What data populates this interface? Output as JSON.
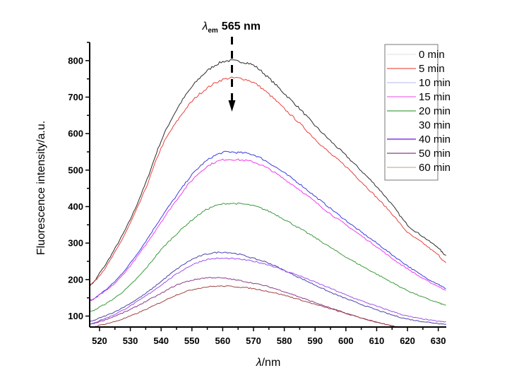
{
  "chart_data": {
    "type": "line",
    "title": "",
    "xlabel_symbol": "λ",
    "xlabel_unit": "/nm",
    "ylabel": "Fluorescence intensity/a.u.",
    "xlim": [
      516.8,
      632.6
    ],
    "ylim": [
      70,
      850
    ],
    "xticks": [
      520,
      530,
      540,
      550,
      560,
      570,
      580,
      590,
      600,
      610,
      620,
      630
    ],
    "yticks": [
      100,
      200,
      300,
      400,
      500,
      600,
      700,
      800
    ],
    "grid": false,
    "legend_position": "top-right",
    "annotation": {
      "symbol": "λ",
      "subscript": "em",
      "text": "565 nm",
      "arrow_x": 563,
      "arrow_direction": "down"
    },
    "x": [
      517,
      520,
      525,
      530,
      535,
      540,
      545,
      550,
      555,
      560,
      565,
      570,
      575,
      580,
      585,
      590,
      595,
      600,
      605,
      610,
      615,
      620,
      625,
      630,
      632.5
    ],
    "series": [
      {
        "name": "0 min",
        "color": "#2b2b2b",
        "legend_color": "#e6e6e6",
        "values": [
          185,
          218,
          285,
          365,
          465,
          580,
          665,
          728,
          772,
          797,
          798,
          787,
          752,
          710,
          668,
          622,
          580,
          540,
          498,
          455,
          405,
          350,
          318,
          288,
          266
        ]
      },
      {
        "name": "5 min",
        "color": "#e8413c",
        "legend_color": "#ee5a55",
        "values": [
          188,
          212,
          275,
          355,
          450,
          560,
          632,
          688,
          725,
          748,
          752,
          740,
          708,
          668,
          628,
          585,
          545,
          510,
          468,
          425,
          380,
          330,
          300,
          268,
          246
        ]
      },
      {
        "name": "10 min",
        "color": "#3b3be0",
        "legend_color": "#c4c4f2",
        "values": [
          143,
          160,
          195,
          245,
          305,
          370,
          430,
          487,
          527,
          548,
          548,
          542,
          520,
          492,
          462,
          428,
          395,
          362,
          330,
          300,
          268,
          238,
          210,
          188,
          176
        ]
      },
      {
        "name": "15 min",
        "color": "#ee3cee",
        "legend_color": "#f26af2",
        "values": [
          142,
          158,
          190,
          238,
          295,
          358,
          418,
          472,
          510,
          528,
          528,
          522,
          503,
          475,
          446,
          413,
          380,
          350,
          320,
          290,
          258,
          230,
          203,
          182,
          172
        ]
      },
      {
        "name": "20 min",
        "color": "#3c9a3c",
        "legend_color": "#4aa04a",
        "values": [
          112,
          125,
          150,
          185,
          230,
          282,
          325,
          363,
          393,
          407,
          408,
          402,
          387,
          365,
          340,
          315,
          288,
          262,
          238,
          215,
          192,
          170,
          152,
          137,
          130
        ]
      },
      {
        "name": "30 min",
        "color": "#4646a8",
        "legend_color": null,
        "values": [
          85,
          95,
          112,
          135,
          162,
          195,
          228,
          255,
          270,
          275,
          270,
          258,
          245,
          225,
          205,
          185,
          165,
          148,
          132,
          117,
          103,
          92,
          85,
          80,
          78
        ]
      },
      {
        "name": "40 min",
        "color": "#a050f0",
        "legend_color": "#a870f0",
        "values": [
          78,
          88,
          105,
          128,
          155,
          185,
          215,
          240,
          255,
          258,
          256,
          250,
          240,
          225,
          210,
          193,
          176,
          158,
          142,
          127,
          113,
          100,
          92,
          86,
          84
        ]
      },
      {
        "name": "50 min",
        "color": "#8c3c8c",
        "legend_color": "#8c3c8c",
        "values": [
          78,
          85,
          100,
          118,
          140,
          162,
          185,
          198,
          205,
          204,
          198,
          190,
          180,
          167,
          152,
          137,
          122,
          108,
          95,
          83,
          73,
          66,
          62,
          60,
          60
        ]
      },
      {
        "name": "60 min",
        "color": "#a04444",
        "legend_color": "#d8a8a8",
        "values": [
          68,
          75,
          85,
          100,
          118,
          138,
          158,
          172,
          180,
          182,
          180,
          175,
          167,
          157,
          145,
          132,
          120,
          107,
          95,
          83,
          73,
          66,
          62,
          60,
          60
        ]
      }
    ]
  }
}
